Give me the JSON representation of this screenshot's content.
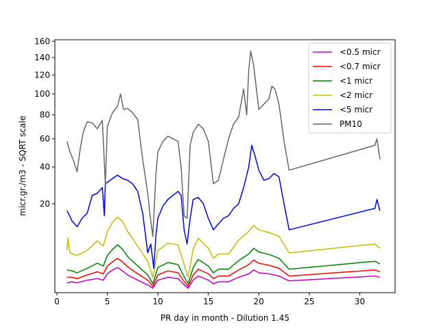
{
  "chart_data": {
    "type": "line",
    "title": "",
    "xlabel": "PR day in month - Dilution 1.45",
    "ylabel": "micr.gr./m3 - SQRT scale",
    "xlim": [
      -0.2,
      33.5
    ],
    "ylim": [
      0,
      162
    ],
    "yscale": "sqrt",
    "xticks": [
      0,
      5,
      10,
      15,
      20,
      25,
      30
    ],
    "yticks": [
      20,
      40,
      60,
      80,
      100,
      120,
      140,
      160
    ],
    "grid": false,
    "legend_position": "top-right",
    "series": [
      {
        "name": "<0.5 micr",
        "color": "#bf00bf",
        "points": [
          [
            1,
            0.25
          ],
          [
            1.5,
            0.3
          ],
          [
            2,
            0.25
          ],
          [
            3,
            0.4
          ],
          [
            4,
            0.5
          ],
          [
            4.6,
            0.4
          ],
          [
            5,
            0.9
          ],
          [
            5.5,
            1.3
          ],
          [
            6,
            1.6
          ],
          [
            6.5,
            1.2
          ],
          [
            7,
            0.8
          ],
          [
            8,
            0.4
          ],
          [
            9,
            0.15
          ],
          [
            9.5,
            0.05
          ],
          [
            10,
            0.4
          ],
          [
            11,
            0.6
          ],
          [
            12,
            0.5
          ],
          [
            12.5,
            0.2
          ],
          [
            13,
            0.05
          ],
          [
            13.5,
            0.4
          ],
          [
            14,
            0.7
          ],
          [
            15,
            0.4
          ],
          [
            15.5,
            0.2
          ],
          [
            16,
            0.3
          ],
          [
            17,
            0.3
          ],
          [
            18,
            0.6
          ],
          [
            19,
            0.9
          ],
          [
            19.5,
            1.3
          ],
          [
            20,
            1.0
          ],
          [
            21,
            0.9
          ],
          [
            22,
            0.7
          ],
          [
            23,
            0.35
          ],
          [
            31.5,
            0.7
          ],
          [
            32,
            0.6
          ]
        ]
      },
      {
        "name": "<0.7 micr",
        "color": "#ff0000",
        "points": [
          [
            1,
            0.6
          ],
          [
            1.5,
            0.6
          ],
          [
            2,
            0.5
          ],
          [
            3,
            0.8
          ],
          [
            4,
            1.1
          ],
          [
            4.6,
            0.9
          ],
          [
            5,
            1.8
          ],
          [
            5.5,
            2.4
          ],
          [
            6,
            3.0
          ],
          [
            6.5,
            2.4
          ],
          [
            7,
            1.7
          ],
          [
            8,
            0.9
          ],
          [
            9,
            0.4
          ],
          [
            9.5,
            0.1
          ],
          [
            10,
            0.8
          ],
          [
            11,
            1.2
          ],
          [
            12,
            1.0
          ],
          [
            12.5,
            0.4
          ],
          [
            13,
            0.1
          ],
          [
            13.5,
            0.8
          ],
          [
            14,
            1.4
          ],
          [
            15,
            0.9
          ],
          [
            15.5,
            0.5
          ],
          [
            16,
            0.7
          ],
          [
            17,
            0.7
          ],
          [
            18,
            1.3
          ],
          [
            19,
            2.0
          ],
          [
            19.5,
            2.7
          ],
          [
            20,
            2.2
          ],
          [
            21,
            1.9
          ],
          [
            22,
            1.5
          ],
          [
            23,
            0.7
          ],
          [
            31.5,
            1.3
          ],
          [
            32,
            1.1
          ]
        ]
      },
      {
        "name": "<1 micr",
        "color": "#008000",
        "points": [
          [
            1,
            1.3
          ],
          [
            1.5,
            1.2
          ],
          [
            2,
            1.0
          ],
          [
            3,
            1.5
          ],
          [
            4,
            2.2
          ],
          [
            4.6,
            1.8
          ],
          [
            5,
            3.5
          ],
          [
            5.5,
            4.7
          ],
          [
            6,
            5.8
          ],
          [
            6.5,
            4.8
          ],
          [
            7,
            3.3
          ],
          [
            8,
            1.8
          ],
          [
            9,
            0.8
          ],
          [
            9.5,
            0.2
          ],
          [
            10,
            1.6
          ],
          [
            11,
            2.3
          ],
          [
            12,
            2.0
          ],
          [
            12.5,
            0.8
          ],
          [
            13,
            0.2
          ],
          [
            13.5,
            1.6
          ],
          [
            14,
            2.8
          ],
          [
            15,
            1.8
          ],
          [
            15.5,
            1.0
          ],
          [
            16,
            1.4
          ],
          [
            17,
            1.4
          ],
          [
            18,
            2.6
          ],
          [
            19,
            3.8
          ],
          [
            19.5,
            5.0
          ],
          [
            20,
            4.2
          ],
          [
            21,
            3.7
          ],
          [
            22,
            3.0
          ],
          [
            23,
            1.4
          ],
          [
            31.5,
            2.5
          ],
          [
            32,
            2.1
          ]
        ]
      },
      {
        "name": "<2 micr",
        "color": "#bfbf00",
        "points": [
          [
            1,
            4.5
          ],
          [
            1.1,
            7.5
          ],
          [
            1.3,
            4.0
          ],
          [
            2,
            3.5
          ],
          [
            3,
            4.5
          ],
          [
            4,
            6.8
          ],
          [
            4.6,
            5.5
          ],
          [
            5,
            9.5
          ],
          [
            5.5,
            12.5
          ],
          [
            6,
            14.5
          ],
          [
            6.5,
            12.8
          ],
          [
            7,
            9.5
          ],
          [
            8,
            5.5
          ],
          [
            9,
            2.5
          ],
          [
            9.5,
            0.6
          ],
          [
            10,
            4.5
          ],
          [
            11,
            6.2
          ],
          [
            12,
            5.8
          ],
          [
            12.5,
            2.5
          ],
          [
            13,
            0.6
          ],
          [
            13.5,
            4.8
          ],
          [
            14,
            7.5
          ],
          [
            15,
            5.0
          ],
          [
            15.5,
            3.0
          ],
          [
            16,
            3.8
          ],
          [
            17,
            3.8
          ],
          [
            18,
            7.0
          ],
          [
            19,
            9.5
          ],
          [
            19.5,
            11.5
          ],
          [
            20,
            10.0
          ],
          [
            21,
            9.2
          ],
          [
            22,
            8.0
          ],
          [
            23,
            4.0
          ],
          [
            31.5,
            6.0
          ],
          [
            32,
            5.0
          ]
        ]
      },
      {
        "name": "<5 micr",
        "color": "#0000ff",
        "points": [
          [
            1,
            17
          ],
          [
            1.2,
            15.5
          ],
          [
            1.5,
            13
          ],
          [
            2,
            11
          ],
          [
            2.5,
            14
          ],
          [
            3,
            16
          ],
          [
            3.5,
            24
          ],
          [
            4,
            25
          ],
          [
            4.5,
            28
          ],
          [
            4.7,
            15
          ],
          [
            4.8,
            30
          ],
          [
            5.5,
            33
          ],
          [
            6,
            35
          ],
          [
            6.5,
            33
          ],
          [
            7,
            32
          ],
          [
            7.5,
            30
          ],
          [
            8,
            26
          ],
          [
            8.5,
            16
          ],
          [
            9,
            4
          ],
          [
            9.3,
            6
          ],
          [
            9.6,
            1.5
          ],
          [
            9.8,
            8
          ],
          [
            10,
            14
          ],
          [
            10.5,
            19
          ],
          [
            11,
            22
          ],
          [
            11.5,
            24
          ],
          [
            12,
            26
          ],
          [
            12.3,
            24
          ],
          [
            12.6,
            10
          ],
          [
            12.9,
            6
          ],
          [
            13.2,
            14
          ],
          [
            13.5,
            22
          ],
          [
            14,
            23
          ],
          [
            14.5,
            20
          ],
          [
            15,
            14
          ],
          [
            15.5,
            10
          ],
          [
            16,
            12
          ],
          [
            16.5,
            14
          ],
          [
            17,
            15
          ],
          [
            17.5,
            18
          ],
          [
            18,
            20
          ],
          [
            18.5,
            28
          ],
          [
            19,
            40
          ],
          [
            19.3,
            55
          ],
          [
            19.6,
            48
          ],
          [
            20,
            38
          ],
          [
            20.5,
            32
          ],
          [
            21,
            33
          ],
          [
            21.5,
            36
          ],
          [
            22,
            34
          ],
          [
            22.5,
            20
          ],
          [
            23,
            10
          ],
          [
            31.5,
            18
          ],
          [
            31.7,
            22
          ],
          [
            32,
            17
          ]
        ]
      },
      {
        "name": "PM10",
        "color": "#666666",
        "points": [
          [
            1,
            58
          ],
          [
            1.3,
            50
          ],
          [
            1.6,
            45
          ],
          [
            2,
            37
          ],
          [
            2.3,
            52
          ],
          [
            2.6,
            65
          ],
          [
            3,
            74
          ],
          [
            3.5,
            73
          ],
          [
            4,
            68
          ],
          [
            4.5,
            75
          ],
          [
            4.8,
            30
          ],
          [
            5,
            70
          ],
          [
            5.5,
            82
          ],
          [
            6,
            88
          ],
          [
            6.3,
            100
          ],
          [
            6.6,
            85
          ],
          [
            7,
            86
          ],
          [
            7.5,
            82
          ],
          [
            8,
            76
          ],
          [
            8.5,
            45
          ],
          [
            9,
            25
          ],
          [
            9.2,
            16
          ],
          [
            9.5,
            8
          ],
          [
            9.8,
            35
          ],
          [
            10,
            50
          ],
          [
            10.5,
            58
          ],
          [
            11,
            62
          ],
          [
            11.5,
            60
          ],
          [
            12,
            58
          ],
          [
            12.3,
            40
          ],
          [
            12.6,
            15
          ],
          [
            12.9,
            14
          ],
          [
            13.2,
            55
          ],
          [
            13.5,
            65
          ],
          [
            14,
            72
          ],
          [
            14.5,
            68
          ],
          [
            15,
            58
          ],
          [
            15.5,
            30
          ],
          [
            16,
            32
          ],
          [
            16.5,
            45
          ],
          [
            17,
            60
          ],
          [
            17.5,
            72
          ],
          [
            18,
            78
          ],
          [
            18.5,
            105
          ],
          [
            18.8,
            80
          ],
          [
            19,
            125
          ],
          [
            19.2,
            148
          ],
          [
            19.5,
            130
          ],
          [
            20,
            85
          ],
          [
            20.5,
            90
          ],
          [
            21,
            95
          ],
          [
            21.3,
            108
          ],
          [
            21.6,
            105
          ],
          [
            22,
            90
          ],
          [
            22.5,
            58
          ],
          [
            23,
            38
          ],
          [
            31.5,
            55
          ],
          [
            31.7,
            60
          ],
          [
            32,
            45
          ]
        ]
      }
    ]
  }
}
